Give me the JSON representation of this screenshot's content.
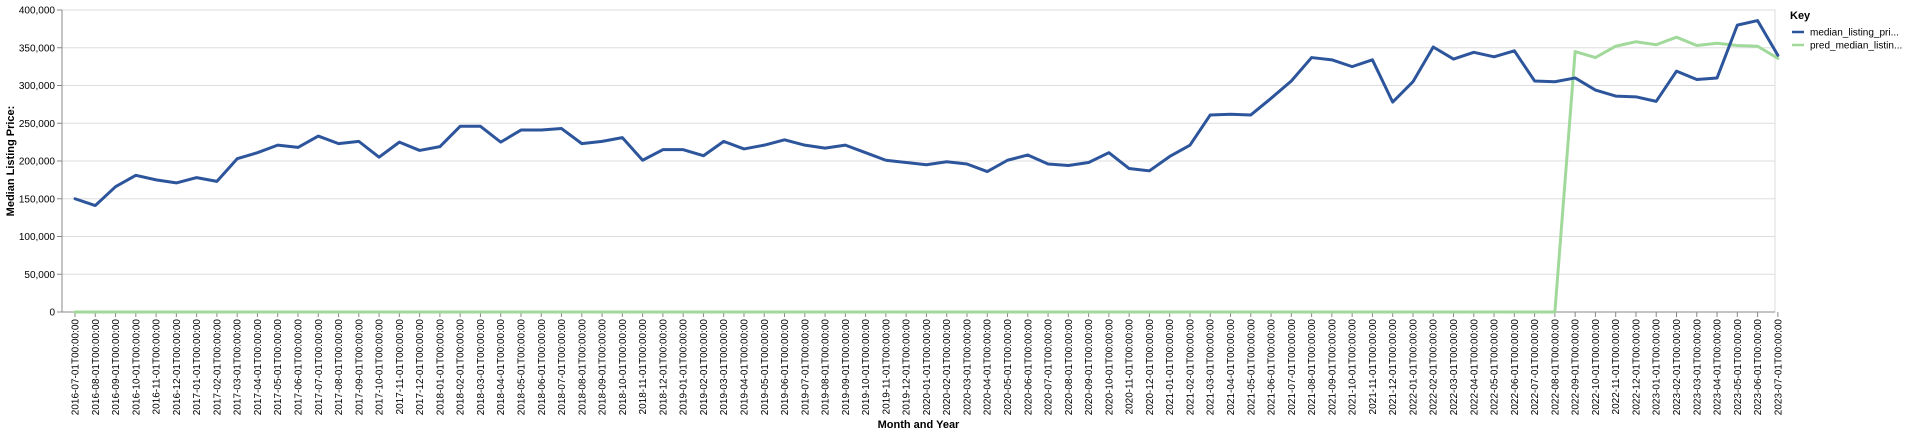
{
  "chart_data": {
    "type": "line",
    "xlabel": "Month and Year",
    "ylabel": "Median Listing Price:",
    "ylim": [
      0,
      400000
    ],
    "yticks": [
      0,
      50000,
      100000,
      150000,
      200000,
      250000,
      300000,
      350000,
      400000
    ],
    "ytick_labels": [
      "0",
      "50,000",
      "100,000",
      "150,000",
      "200,000",
      "250,000",
      "300,000",
      "350,000",
      "400,000"
    ],
    "grid": true,
    "legend_title": "Key",
    "legend_position": "right",
    "x": [
      "2016-07-01T00:00:00",
      "2016-08-01T00:00:00",
      "2016-09-01T00:00:00",
      "2016-10-01T00:00:00",
      "2016-11-01T00:00:00",
      "2016-12-01T00:00:00",
      "2017-01-01T00:00:00",
      "2017-02-01T00:00:00",
      "2017-03-01T00:00:00",
      "2017-04-01T00:00:00",
      "2017-05-01T00:00:00",
      "2017-06-01T00:00:00",
      "2017-07-01T00:00:00",
      "2017-08-01T00:00:00",
      "2017-09-01T00:00:00",
      "2017-10-01T00:00:00",
      "2017-11-01T00:00:00",
      "2017-12-01T00:00:00",
      "2018-01-01T00:00:00",
      "2018-02-01T00:00:00",
      "2018-03-01T00:00:00",
      "2018-04-01T00:00:00",
      "2018-05-01T00:00:00",
      "2018-06-01T00:00:00",
      "2018-07-01T00:00:00",
      "2018-08-01T00:00:00",
      "2018-09-01T00:00:00",
      "2018-10-01T00:00:00",
      "2018-11-01T00:00:00",
      "2018-12-01T00:00:00",
      "2019-01-01T00:00:00",
      "2019-02-01T00:00:00",
      "2019-03-01T00:00:00",
      "2019-04-01T00:00:00",
      "2019-05-01T00:00:00",
      "2019-06-01T00:00:00",
      "2019-07-01T00:00:00",
      "2019-08-01T00:00:00",
      "2019-09-01T00:00:00",
      "2019-10-01T00:00:00",
      "2019-11-01T00:00:00",
      "2019-12-01T00:00:00",
      "2020-01-01T00:00:00",
      "2020-02-01T00:00:00",
      "2020-03-01T00:00:00",
      "2020-04-01T00:00:00",
      "2020-05-01T00:00:00",
      "2020-06-01T00:00:00",
      "2020-07-01T00:00:00",
      "2020-08-01T00:00:00",
      "2020-09-01T00:00:00",
      "2020-10-01T00:00:00",
      "2020-11-01T00:00:00",
      "2020-12-01T00:00:00",
      "2021-01-01T00:00:00",
      "2021-02-01T00:00:00",
      "2021-03-01T00:00:00",
      "2021-04-01T00:00:00",
      "2021-05-01T00:00:00",
      "2021-06-01T00:00:00",
      "2021-07-01T00:00:00",
      "2021-08-01T00:00:00",
      "2021-09-01T00:00:00",
      "2021-10-01T00:00:00",
      "2021-11-01T00:00:00",
      "2021-12-01T00:00:00",
      "2022-01-01T00:00:00",
      "2022-02-01T00:00:00",
      "2022-03-01T00:00:00",
      "2022-04-01T00:00:00",
      "2022-05-01T00:00:00",
      "2022-06-01T00:00:00",
      "2022-07-01T00:00:00",
      "2022-08-01T00:00:00",
      "2022-09-01T00:00:00",
      "2022-10-01T00:00:00",
      "2022-11-01T00:00:00",
      "2022-12-01T00:00:00",
      "2023-01-01T00:00:00",
      "2023-02-01T00:00:00",
      "2023-03-01T00:00:00",
      "2023-04-01T00:00:00",
      "2023-05-01T00:00:00",
      "2023-06-01T00:00:00",
      "2023-07-01T00:00:00"
    ],
    "series": [
      {
        "name": "median_listing_pri...",
        "color": "#2d559c",
        "values": [
          150000,
          141000,
          166000,
          181000,
          175000,
          171000,
          178000,
          173000,
          203000,
          211000,
          221000,
          218000,
          233000,
          223000,
          226000,
          205000,
          225000,
          214000,
          219000,
          246000,
          246000,
          225000,
          241000,
          241000,
          243000,
          223000,
          226000,
          231000,
          201000,
          215000,
          215000,
          207000,
          226000,
          216000,
          221000,
          228000,
          221000,
          217000,
          221000,
          211000,
          201000,
          198000,
          195000,
          199000,
          196000,
          186000,
          201000,
          208000,
          196000,
          194000,
          198000,
          211000,
          190000,
          187000,
          206000,
          221000,
          261000,
          262000,
          261000,
          283000,
          306000,
          337000,
          334000,
          325000,
          334000,
          278000,
          305000,
          351000,
          335000,
          344000,
          338000,
          346000,
          306000,
          305000,
          310000,
          294000,
          286000,
          285000,
          279000,
          319000,
          308000,
          310000,
          380000,
          386000,
          340000
        ]
      },
      {
        "name": "pred_median_listin...",
        "color": "#a1d99b",
        "values": [
          0,
          0,
          0,
          0,
          0,
          0,
          0,
          0,
          0,
          0,
          0,
          0,
          0,
          0,
          0,
          0,
          0,
          0,
          0,
          0,
          0,
          0,
          0,
          0,
          0,
          0,
          0,
          0,
          0,
          0,
          0,
          0,
          0,
          0,
          0,
          0,
          0,
          0,
          0,
          0,
          0,
          0,
          0,
          0,
          0,
          0,
          0,
          0,
          0,
          0,
          0,
          0,
          0,
          0,
          0,
          0,
          0,
          0,
          0,
          0,
          0,
          0,
          0,
          0,
          0,
          0,
          0,
          0,
          0,
          0,
          0,
          0,
          0,
          0,
          345000,
          337000,
          352000,
          358000,
          354000,
          364000,
          353000,
          356000,
          353000,
          352000,
          336000
        ]
      }
    ]
  }
}
